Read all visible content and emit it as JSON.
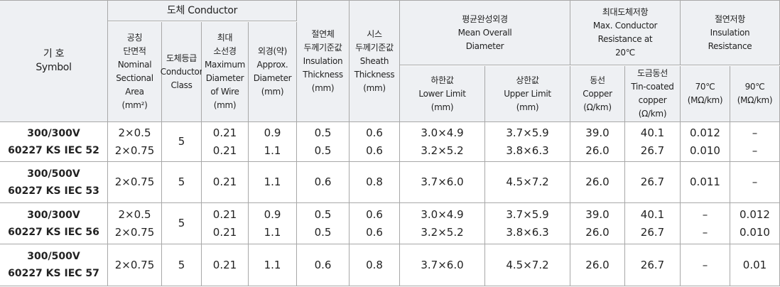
{
  "header": {
    "symbol": [
      "기 호",
      "Symbol"
    ],
    "conductor": "도체 Conductor",
    "nominal_area": [
      "공칭",
      "단면적",
      "Nominal",
      "Sectional",
      "Area",
      "(mm²)"
    ],
    "conductor_class": [
      "도체등급",
      "Conductor",
      "Class"
    ],
    "max_wire": [
      "최대",
      "소선경",
      "Maximum",
      "Diameter",
      "of Wire",
      "(mm)"
    ],
    "approx_diameter": [
      "외경(약)",
      "Approx.",
      "Diameter",
      "(mm)"
    ],
    "insulation": [
      "절연체",
      "두께기준값",
      "Insulation",
      "Thickness",
      "(mm)"
    ],
    "sheath": [
      "시스",
      "두께기준값",
      "Sheath",
      "Thickness",
      "(mm)"
    ],
    "mean_diameter": [
      "평균완성외경",
      "Mean Overall",
      "Diameter"
    ],
    "lower": [
      "하한값",
      "Lower Limit",
      "(mm)"
    ],
    "upper": [
      "상한값",
      "Upper Limit",
      "(mm)"
    ],
    "max_resistance": [
      "최대도체저항",
      "Max. Conductor",
      "Resistance at",
      "20℃"
    ],
    "copper": [
      "동선",
      "Copper",
      "(Ω/km)"
    ],
    "tin": [
      "도금동선",
      "Tin-coated",
      "copper",
      "(Ω/km)"
    ],
    "insulation_resistance": [
      "절연저항",
      "Insulation",
      "Resistance"
    ],
    "r70": [
      "70℃",
      "(MΩ/km)"
    ],
    "r90": [
      "90℃",
      "(MΩ/km)"
    ]
  },
  "rows": [
    [
      [
        "300/300V",
        "60227 KS IEC 52"
      ],
      [
        "2×0.5",
        "2×0.75"
      ],
      [
        "5"
      ],
      [
        "0.21",
        "0.21"
      ],
      [
        "0.9",
        "1.1"
      ],
      [
        "0.5",
        "0.5"
      ],
      [
        "0.6",
        "0.6"
      ],
      [
        "3.0×4.9",
        "3.2×5.2"
      ],
      [
        "3.7×5.9",
        "3.8×6.3"
      ],
      [
        "39.0",
        "26.0"
      ],
      [
        "40.1",
        "26.7"
      ],
      [
        "0.012",
        "0.010"
      ],
      [
        "–",
        "–"
      ]
    ],
    [
      [
        "300/500V",
        "60227 KS IEC 53"
      ],
      [
        "2×0.75"
      ],
      [
        "5"
      ],
      [
        "0.21"
      ],
      [
        "1.1"
      ],
      [
        "0.6"
      ],
      [
        "0.8"
      ],
      [
        "3.7×6.0"
      ],
      [
        "4.5×7.2"
      ],
      [
        "26.0"
      ],
      [
        "26.7"
      ],
      [
        "0.011"
      ],
      [
        "–"
      ]
    ],
    [
      [
        "300/300V",
        "60227 KS IEC 56"
      ],
      [
        "2×0.5",
        "2×0.75"
      ],
      [
        "5"
      ],
      [
        "0.21",
        "0.21"
      ],
      [
        "0.9",
        "1.1"
      ],
      [
        "0.5",
        "0.5"
      ],
      [
        "0.6",
        "0.6"
      ],
      [
        "3.0×4.9",
        "3.2×5.2"
      ],
      [
        "3.7×5.9",
        "3.8×6.3"
      ],
      [
        "39.0",
        "26.0"
      ],
      [
        "40.1",
        "26.7"
      ],
      [
        "–",
        "–"
      ],
      [
        "0.012",
        "0.010"
      ]
    ],
    [
      [
        "300/500V",
        "60227 KS IEC 57"
      ],
      [
        "2×0.75"
      ],
      [
        "5"
      ],
      [
        "0.21"
      ],
      [
        "1.1"
      ],
      [
        "0.6"
      ],
      [
        "0.8"
      ],
      [
        "3.7×6.0"
      ],
      [
        "4.5×7.2"
      ],
      [
        "26.0"
      ],
      [
        "26.7"
      ],
      [
        "–"
      ],
      [
        "0.01"
      ]
    ]
  ]
}
